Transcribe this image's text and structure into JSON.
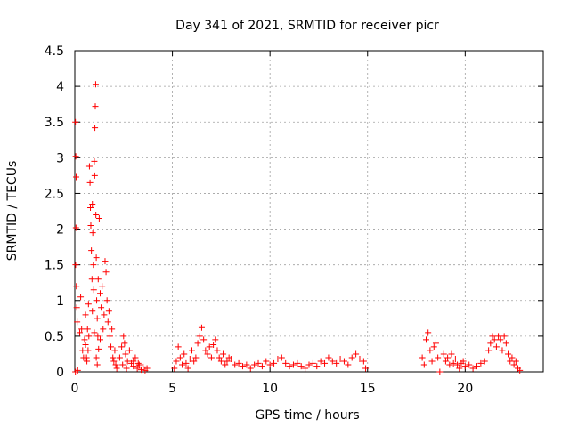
{
  "chart_data": {
    "type": "scatter",
    "title": "Day 341 of 2021, SRMTID for receiver picr",
    "xlabel": "GPS time / hours",
    "ylabel": "SRMTID / TECUs",
    "xlim": [
      0,
      24
    ],
    "ylim": [
      0,
      4.5
    ],
    "xticks": [
      0,
      5,
      10,
      15,
      20
    ],
    "yticks": [
      0,
      0.5,
      1,
      1.5,
      2,
      2.5,
      3,
      3.5,
      4,
      4.5
    ],
    "ytick_labels": [
      "0",
      "0.5",
      "1",
      "1.5",
      "2",
      "2.5",
      "3",
      "3.5",
      "4",
      "4.5"
    ],
    "xtick_labels": [
      "0",
      "5",
      "10",
      "15",
      "20"
    ],
    "grid": true,
    "marker": "+",
    "marker_color": "#ff0000",
    "series": [
      {
        "name": "SRMTID",
        "color": "#ff0000",
        "points": [
          [
            0.03,
            3.5
          ],
          [
            0.05,
            3.02
          ],
          [
            0.07,
            2.73
          ],
          [
            0.06,
            2.02
          ],
          [
            0.04,
            1.5
          ],
          [
            0.08,
            1.2
          ],
          [
            0.1,
            0.9
          ],
          [
            0.12,
            0.7
          ],
          [
            0.03,
            0.0
          ],
          [
            0.15,
            0.02
          ],
          [
            0.25,
            0.55
          ],
          [
            0.3,
            1.05
          ],
          [
            0.35,
            0.6
          ],
          [
            0.4,
            0.3
          ],
          [
            0.45,
            0.2
          ],
          [
            0.5,
            0.45
          ],
          [
            0.55,
            0.8
          ],
          [
            0.6,
            0.2
          ],
          [
            0.65,
            0.6
          ],
          [
            0.7,
            0.95
          ],
          [
            0.75,
            2.88
          ],
          [
            0.78,
            2.65
          ],
          [
            0.8,
            2.3
          ],
          [
            0.82,
            2.05
          ],
          [
            0.85,
            1.7
          ],
          [
            0.88,
            1.3
          ],
          [
            0.9,
            2.35
          ],
          [
            0.92,
            1.95
          ],
          [
            0.95,
            1.5
          ],
          [
            0.97,
            1.15
          ],
          [
            1.0,
            2.95
          ],
          [
            1.02,
            2.75
          ],
          [
            1.03,
            3.42
          ],
          [
            1.05,
            3.72
          ],
          [
            1.07,
            4.03
          ],
          [
            1.08,
            2.2
          ],
          [
            1.1,
            1.6
          ],
          [
            1.12,
            1.0
          ],
          [
            1.15,
            0.75
          ],
          [
            1.18,
            0.5
          ],
          [
            1.2,
            1.3
          ],
          [
            1.25,
            2.15
          ],
          [
            1.3,
            1.1
          ],
          [
            1.35,
            0.9
          ],
          [
            1.4,
            1.2
          ],
          [
            1.45,
            0.6
          ],
          [
            1.5,
            0.8
          ],
          [
            1.55,
            1.55
          ],
          [
            1.6,
            1.4
          ],
          [
            1.65,
            1.0
          ],
          [
            1.7,
            0.7
          ],
          [
            1.75,
            0.85
          ],
          [
            1.8,
            0.5
          ],
          [
            1.85,
            0.35
          ],
          [
            1.9,
            0.6
          ],
          [
            1.95,
            0.2
          ],
          [
            2.0,
            0.15
          ],
          [
            2.05,
            0.3
          ],
          [
            2.1,
            0.1
          ],
          [
            2.15,
            0.05
          ],
          [
            0.55,
            0.38
          ],
          [
            0.62,
            0.15
          ],
          [
            0.68,
            0.3
          ],
          [
            0.72,
            0.5
          ],
          [
            0.9,
            0.85
          ],
          [
            1.0,
            0.55
          ],
          [
            1.1,
            0.2
          ],
          [
            1.15,
            0.1
          ],
          [
            1.22,
            0.32
          ],
          [
            1.3,
            0.45
          ],
          [
            2.3,
            0.2
          ],
          [
            2.4,
            0.35
          ],
          [
            2.5,
            0.5
          ],
          [
            2.55,
            0.4
          ],
          [
            2.6,
            0.25
          ],
          [
            2.7,
            0.15
          ],
          [
            2.8,
            0.3
          ],
          [
            2.9,
            0.12
          ],
          [
            3.0,
            0.08
          ],
          [
            3.1,
            0.2
          ],
          [
            3.2,
            0.05
          ],
          [
            3.3,
            0.1
          ],
          [
            3.4,
            0.03
          ],
          [
            3.5,
            0.07
          ],
          [
            3.6,
            0.02
          ],
          [
            3.7,
            0.05
          ],
          [
            3.0,
            0.15
          ],
          [
            2.65,
            0.05
          ],
          [
            2.45,
            0.1
          ],
          [
            3.25,
            0.12
          ],
          [
            5.1,
            0.05
          ],
          [
            5.2,
            0.15
          ],
          [
            5.3,
            0.35
          ],
          [
            5.4,
            0.2
          ],
          [
            5.5,
            0.1
          ],
          [
            5.6,
            0.25
          ],
          [
            5.7,
            0.12
          ],
          [
            5.8,
            0.05
          ],
          [
            5.9,
            0.18
          ],
          [
            6.0,
            0.3
          ],
          [
            6.1,
            0.15
          ],
          [
            6.2,
            0.2
          ],
          [
            6.3,
            0.4
          ],
          [
            6.4,
            0.5
          ],
          [
            6.5,
            0.62
          ],
          [
            6.6,
            0.45
          ],
          [
            6.7,
            0.3
          ],
          [
            6.8,
            0.25
          ],
          [
            6.9,
            0.35
          ],
          [
            7.0,
            0.2
          ],
          [
            7.1,
            0.38
          ],
          [
            7.2,
            0.45
          ],
          [
            7.3,
            0.3
          ],
          [
            7.4,
            0.2
          ],
          [
            7.5,
            0.15
          ],
          [
            7.6,
            0.25
          ],
          [
            7.7,
            0.1
          ],
          [
            7.8,
            0.15
          ],
          [
            7.9,
            0.2
          ],
          [
            8.0,
            0.18
          ],
          [
            8.2,
            0.1
          ],
          [
            8.4,
            0.12
          ],
          [
            8.6,
            0.08
          ],
          [
            8.8,
            0.1
          ],
          [
            9.0,
            0.05
          ],
          [
            9.2,
            0.1
          ],
          [
            9.4,
            0.12
          ],
          [
            9.6,
            0.08
          ],
          [
            9.8,
            0.15
          ],
          [
            10.0,
            0.1
          ],
          [
            10.2,
            0.12
          ],
          [
            10.4,
            0.18
          ],
          [
            10.6,
            0.2
          ],
          [
            10.8,
            0.12
          ],
          [
            11.0,
            0.08
          ],
          [
            11.2,
            0.1
          ],
          [
            11.4,
            0.12
          ],
          [
            11.6,
            0.08
          ],
          [
            11.8,
            0.05
          ],
          [
            12.0,
            0.1
          ],
          [
            12.2,
            0.12
          ],
          [
            12.4,
            0.08
          ],
          [
            12.6,
            0.15
          ],
          [
            12.8,
            0.12
          ],
          [
            13.0,
            0.2
          ],
          [
            13.2,
            0.15
          ],
          [
            13.4,
            0.12
          ],
          [
            13.6,
            0.18
          ],
          [
            13.8,
            0.15
          ],
          [
            14.0,
            0.1
          ],
          [
            14.2,
            0.2
          ],
          [
            14.4,
            0.25
          ],
          [
            14.6,
            0.18
          ],
          [
            14.8,
            0.15
          ],
          [
            14.9,
            0.05
          ],
          [
            17.8,
            0.2
          ],
          [
            17.9,
            0.1
          ],
          [
            18.0,
            0.45
          ],
          [
            18.1,
            0.55
          ],
          [
            18.2,
            0.3
          ],
          [
            18.3,
            0.15
          ],
          [
            18.4,
            0.35
          ],
          [
            18.5,
            0.4
          ],
          [
            18.6,
            0.2
          ],
          [
            18.7,
            0.0
          ],
          [
            18.9,
            0.25
          ],
          [
            19.0,
            0.15
          ],
          [
            19.1,
            0.2
          ],
          [
            19.2,
            0.1
          ],
          [
            19.3,
            0.25
          ],
          [
            19.4,
            0.12
          ],
          [
            19.5,
            0.18
          ],
          [
            19.6,
            0.1
          ],
          [
            19.7,
            0.05
          ],
          [
            19.8,
            0.12
          ],
          [
            19.9,
            0.15
          ],
          [
            20.0,
            0.08
          ],
          [
            20.2,
            0.1
          ],
          [
            20.4,
            0.05
          ],
          [
            20.6,
            0.08
          ],
          [
            20.8,
            0.12
          ],
          [
            21.0,
            0.15
          ],
          [
            21.2,
            0.3
          ],
          [
            21.3,
            0.4
          ],
          [
            21.4,
            0.5
          ],
          [
            21.5,
            0.45
          ],
          [
            21.6,
            0.35
          ],
          [
            21.7,
            0.5
          ],
          [
            21.8,
            0.45
          ],
          [
            21.9,
            0.3
          ],
          [
            22.0,
            0.5
          ],
          [
            22.1,
            0.4
          ],
          [
            22.2,
            0.25
          ],
          [
            22.3,
            0.15
          ],
          [
            22.4,
            0.2
          ],
          [
            22.5,
            0.1
          ],
          [
            22.6,
            0.15
          ],
          [
            22.7,
            0.05
          ],
          [
            22.8,
            0.02
          ]
        ]
      }
    ]
  }
}
